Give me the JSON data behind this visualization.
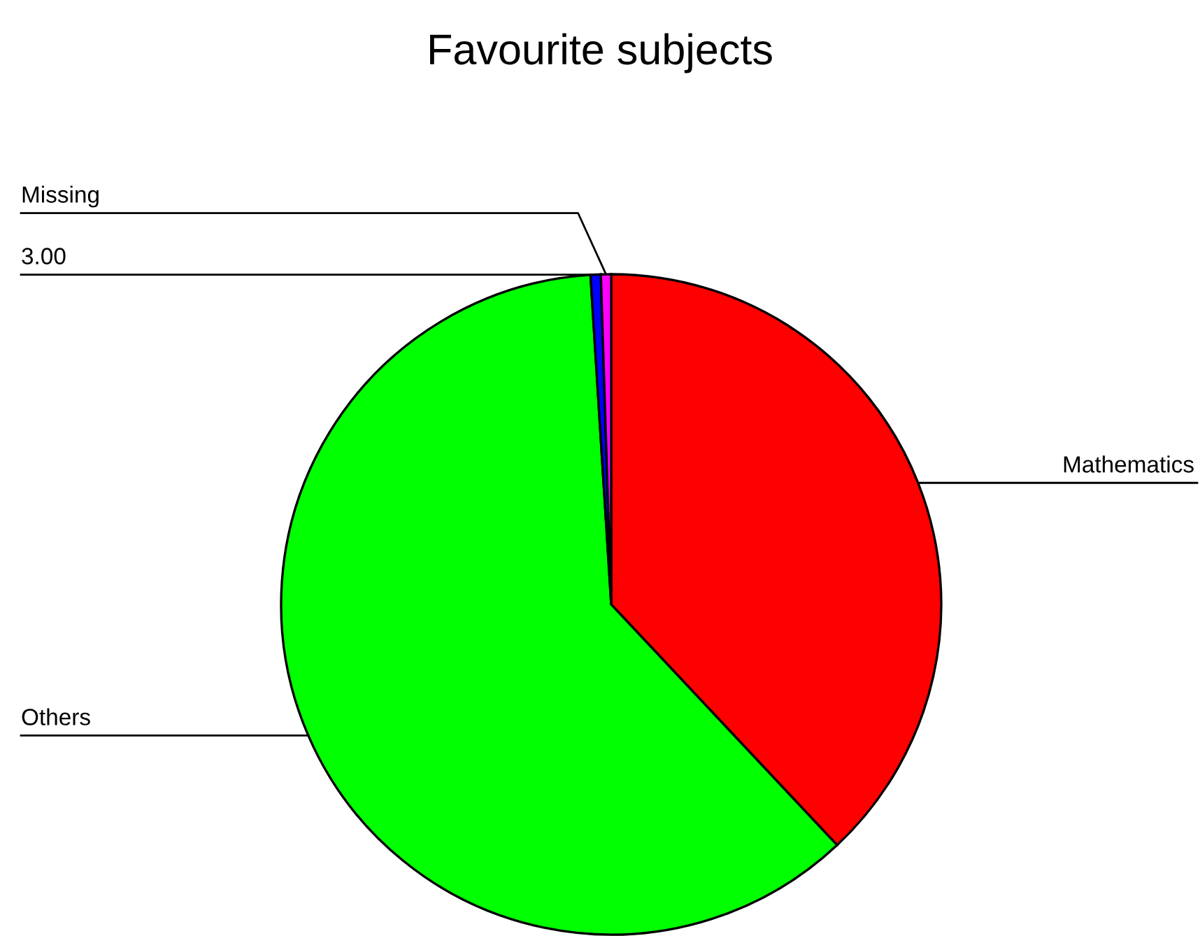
{
  "chart_data": {
    "type": "pie",
    "title": "Favourite subjects",
    "categories": [
      "Mathematics",
      "Others",
      "3.00",
      "Missing"
    ],
    "values": [
      38,
      61,
      0.5,
      0.5
    ],
    "colors": [
      "#ff0000",
      "#00ff00",
      "#0000ff",
      "#ff00ff"
    ]
  }
}
